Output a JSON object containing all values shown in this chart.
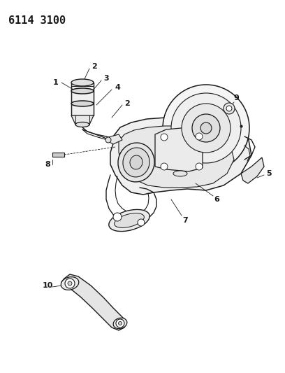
{
  "title": "6114 3100",
  "bg_color": "#ffffff",
  "line_color": "#1a1a1a",
  "title_fontsize": 11,
  "label_fontsize": 8,
  "fig_width": 4.08,
  "fig_height": 5.33,
  "dpi": 100
}
